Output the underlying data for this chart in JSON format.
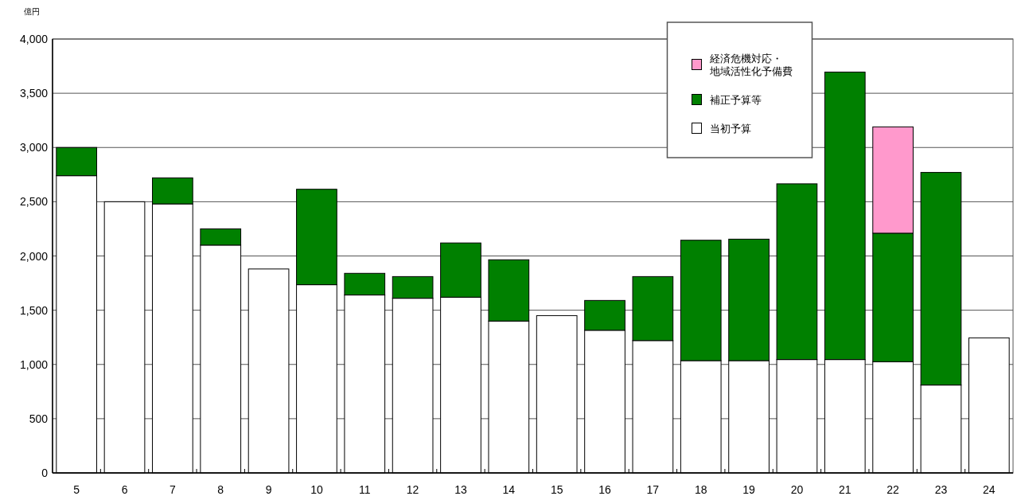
{
  "chart_data": {
    "type": "bar",
    "stacked": true,
    "ylabel": "億円",
    "categories": [
      "5",
      "6",
      "7",
      "8",
      "9",
      "10",
      "11",
      "12",
      "13",
      "14",
      "15",
      "16",
      "17",
      "18",
      "19",
      "20",
      "21",
      "22",
      "23",
      "24"
    ],
    "series": [
      {
        "name": "当初予算",
        "color": "#ffffff",
        "values": [
          2740,
          2500,
          2480,
          2100,
          1880,
          1735,
          1640,
          1610,
          1620,
          1400,
          1450,
          1315,
          1220,
          1035,
          1035,
          1045,
          1045,
          1025,
          810,
          1245
        ]
      },
      {
        "name": "補正予算等",
        "color": "#008000",
        "values": [
          260,
          null,
          240,
          150,
          null,
          880,
          200,
          200,
          500,
          565,
          null,
          275,
          590,
          1110,
          1120,
          1620,
          2650,
          1185,
          1960,
          null
        ]
      },
      {
        "name": "経済危機対応・地域活性化予備費",
        "color": "#ff99cc",
        "values": [
          null,
          null,
          null,
          null,
          null,
          null,
          null,
          null,
          null,
          null,
          null,
          null,
          null,
          null,
          null,
          null,
          null,
          980,
          null,
          null
        ]
      }
    ],
    "ylim": [
      0,
      4000
    ],
    "yticks": [
      0,
      500,
      {
        "value": 1000,
        "label": "1,000"
      },
      {
        "value": 1500,
        "label": "1,500"
      },
      {
        "value": 2000,
        "label": "2,000"
      },
      {
        "value": 2500,
        "label": "2,500"
      },
      {
        "value": 3000,
        "label": "3,000"
      },
      {
        "value": 3500,
        "label": "3,500"
      },
      {
        "value": 4000,
        "label": "4,000"
      }
    ],
    "grid": "y",
    "legend": "top right"
  }
}
